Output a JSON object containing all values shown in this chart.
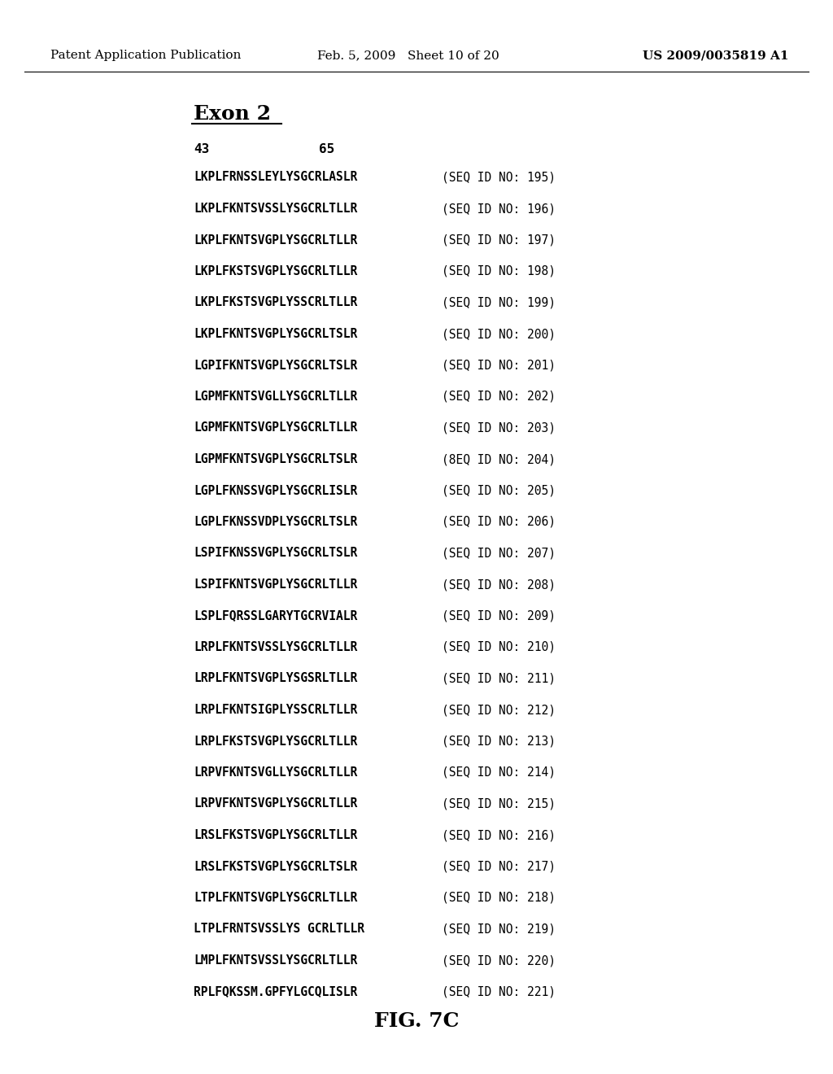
{
  "header_left": "Patent Application Publication",
  "header_mid": "Feb. 5, 2009   Sheet 10 of 20",
  "header_right": "US 2009/0035819 A1",
  "section_title": "Exon 2",
  "num_left": "43",
  "num_right": "65",
  "sequences": [
    [
      "LKPLFRNSSLEYLYSGCRLASLR",
      "(SEQ ID NO: 195)"
    ],
    [
      "LKPLFKNTSVSSLYSGCRLTLLR",
      "(SEQ ID NO: 196)"
    ],
    [
      "LKPLFKNTSVGPLYSGCRLTLLR",
      "(SEQ ID NO: 197)"
    ],
    [
      "LKPLFKSTSVGPLYSGCRLTLLR",
      "(SEQ ID NO: 198)"
    ],
    [
      "LKPLFKSTSVGPLYSSCRLTLLR",
      "(SEQ ID NO: 199)"
    ],
    [
      "LKPLFKNTSVGPLYSGCRLTSLR",
      "(SEQ ID NO: 200)"
    ],
    [
      "LGPIFKNTSVGPLYSGCRLTSLR",
      "(SEQ ID NO: 201)"
    ],
    [
      "LGPMFKNTSVGLLYSGCRLTLLR",
      "(SEQ ID NO: 202)"
    ],
    [
      "LGPMFKNTSVGPLYSGCRLTLLR",
      "(SEQ ID NO: 203)"
    ],
    [
      "LGPMFKNTSVGPLYSGCRLTSLR",
      "(8EQ ID NO: 204)"
    ],
    [
      "LGPLFKNSSVGPLYSGCRLISLR",
      "(SEQ ID NO: 205)"
    ],
    [
      "LGPLFKNSSVDPLYSGCRLTSLR",
      "(SEQ ID NO: 206)"
    ],
    [
      "LSPIFKNSSVGPLYSGCRLTSLR",
      "(SEQ ID NO: 207)"
    ],
    [
      "LSPIFKNTSVGPLYSGCRLTLLR",
      "(SEQ ID NO: 208)"
    ],
    [
      "LSPLFQRSSLGARYTGCRVIALR",
      "(SEQ ID NO: 209)"
    ],
    [
      "LRPLFKNTSVSSLYSGCRLTLLR",
      "(SEQ ID NO: 210)"
    ],
    [
      "LRPLFKNTSVGPLYSGSRLTLLR",
      "(SEQ ID NO: 211)"
    ],
    [
      "LRPLFKNTSIGPLYSSCRLTLLR",
      "(SEQ ID NO: 212)"
    ],
    [
      "LRPLFKSTSVGPLYSGCRLTLLR",
      "(SEQ ID NO: 213)"
    ],
    [
      "LRPVFKNTSVGLLYSGCRLTLLR",
      "(SEQ ID NO: 214)"
    ],
    [
      "LRPVFKNTSVGPLYSGCRLTLLR",
      "(SEQ ID NO: 215)"
    ],
    [
      "LRSLFKSTSVGPLYSGCRLTLLR",
      "(SEQ ID NO: 216)"
    ],
    [
      "LRSLFKSTSVGPLYSGCRLTSLR",
      "(SEQ ID NO: 217)"
    ],
    [
      "LTPLFKNTSVGPLYSGCRLTLLR",
      "(SEQ ID NO: 218)"
    ],
    [
      "LTPLFRNTSVSSLYS GCRLTLLR",
      "(SEQ ID NO: 219)"
    ],
    [
      "LMPLFKNTSVSSLYSGCRLTLLR",
      "(SEQ ID NO: 220)"
    ],
    [
      "RPLFQKSSM.GPFYLGCQLISLR",
      "(SEQ ID NO: 221)"
    ]
  ],
  "figure_label": "FIG. 7C",
  "bg_color": "#ffffff",
  "text_color": "#000000",
  "header_fontsize": 11,
  "title_fontsize": 18,
  "seq_fontsize": 10.5,
  "fig_label_fontsize": 18
}
